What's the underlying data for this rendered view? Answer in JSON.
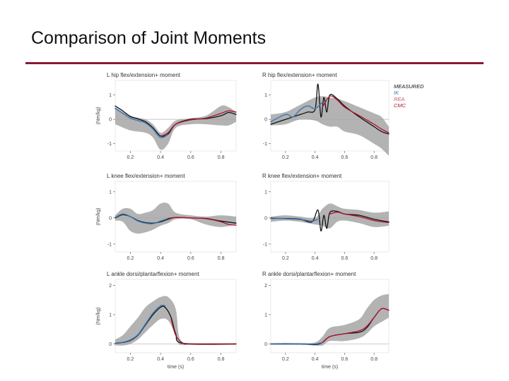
{
  "slide": {
    "title": "Comparison of Joint Moments",
    "accent_color": "#8b1a33"
  },
  "legend": [
    {
      "label": "MEASURED",
      "color": "#111111"
    },
    {
      "label": "IK",
      "color": "#3a78b8"
    },
    {
      "label": "REA",
      "color": "#c25a72"
    },
    {
      "label": "CMC",
      "color": "#b0122f"
    }
  ],
  "chart_data": [
    {
      "type": "line",
      "title": "L hip flex/extension+ moment",
      "ylabel": "(Nm/kg)",
      "xlabel": "",
      "xlim": [
        0.1,
        0.9
      ],
      "ylim": [
        -1.3,
        1.6
      ],
      "xticks": [
        "0.2",
        "0.4",
        "0.6",
        "0.8"
      ],
      "xtick_values": [
        0.2,
        0.4,
        0.6,
        0.8
      ],
      "yticks": [
        "1",
        "0",
        "-1"
      ],
      "ytick_values": [
        1,
        0,
        -1
      ],
      "band": {
        "x": [
          0.1,
          0.2,
          0.3,
          0.35,
          0.4,
          0.45,
          0.5,
          0.6,
          0.7,
          0.8,
          0.85,
          0.9
        ],
        "upper": [
          0.5,
          0.15,
          0.0,
          -0.2,
          -0.55,
          -0.35,
          -0.05,
          0.05,
          0.15,
          0.55,
          0.5,
          0.3
        ],
        "lower": [
          -0.2,
          -0.45,
          -0.55,
          -0.75,
          -1.25,
          -1.0,
          -0.35,
          -0.2,
          -0.2,
          -0.25,
          -0.25,
          -0.1
        ]
      },
      "series": [
        {
          "name": "MEASURED",
          "x": [
            0.1,
            0.15,
            0.2,
            0.25,
            0.3,
            0.35,
            0.4,
            0.45,
            0.5,
            0.6,
            0.7,
            0.8,
            0.85,
            0.9
          ],
          "y": [
            0.55,
            0.35,
            0.12,
            0.02,
            -0.1,
            -0.35,
            -0.68,
            -0.6,
            -0.2,
            0.0,
            0.03,
            0.15,
            0.28,
            0.2
          ]
        },
        {
          "name": "IK",
          "x": [
            0.1,
            0.15,
            0.2,
            0.25,
            0.3,
            0.35,
            0.4,
            0.45
          ],
          "y": [
            0.45,
            0.25,
            0.05,
            -0.05,
            -0.15,
            -0.4,
            -0.75,
            -0.62
          ]
        },
        {
          "name": "CMC",
          "x": [
            0.4,
            0.45,
            0.5,
            0.6,
            0.7,
            0.8,
            0.85,
            0.9
          ],
          "y": [
            -0.7,
            -0.55,
            -0.2,
            -0.02,
            0.05,
            0.25,
            0.35,
            0.3
          ]
        }
      ]
    },
    {
      "type": "line",
      "title": "R hip flex/extension+ moment",
      "ylabel": "",
      "xlabel": "",
      "xlim": [
        0.1,
        0.9
      ],
      "ylim": [
        -1.3,
        1.6
      ],
      "xticks": [
        "0.2",
        "0.4",
        "0.6",
        "0.8"
      ],
      "xtick_values": [
        0.2,
        0.4,
        0.6,
        0.8
      ],
      "yticks": [
        "1",
        "0",
        "-1"
      ],
      "ytick_values": [
        1,
        0,
        -1
      ],
      "band": {
        "x": [
          0.1,
          0.2,
          0.3,
          0.4,
          0.45,
          0.5,
          0.55,
          0.6,
          0.7,
          0.8,
          0.85,
          0.9
        ],
        "upper": [
          0.2,
          0.3,
          0.6,
          0.9,
          0.95,
          0.9,
          0.85,
          0.75,
          0.5,
          0.25,
          0.1,
          -0.3
        ],
        "lower": [
          -0.25,
          -0.2,
          0.0,
          -0.05,
          -0.2,
          -0.3,
          -0.3,
          -0.5,
          -0.65,
          -1.0,
          -1.2,
          -1.5
        ]
      },
      "series": [
        {
          "name": "MEASURED",
          "x": [
            0.1,
            0.2,
            0.3,
            0.35,
            0.4,
            0.42,
            0.44,
            0.46,
            0.48,
            0.5,
            0.55,
            0.6,
            0.7,
            0.8,
            0.85,
            0.9
          ],
          "y": [
            -0.2,
            0.0,
            0.2,
            0.3,
            0.4,
            1.45,
            0.1,
            0.9,
            0.3,
            1.0,
            0.85,
            0.55,
            0.1,
            -0.3,
            -0.5,
            -0.6
          ]
        },
        {
          "name": "IK",
          "x": [
            0.1,
            0.2,
            0.25,
            0.3,
            0.35,
            0.4,
            0.45
          ],
          "y": [
            -0.1,
            0.2,
            0.1,
            0.4,
            0.55,
            0.45,
            0.7
          ]
        },
        {
          "name": "CMC",
          "x": [
            0.45,
            0.5,
            0.55,
            0.6,
            0.7,
            0.8,
            0.85,
            0.9
          ],
          "y": [
            0.5,
            0.95,
            0.8,
            0.5,
            0.15,
            -0.2,
            -0.4,
            -0.55
          ]
        }
      ]
    },
    {
      "type": "line",
      "title": "L knee flex/extension+ moment",
      "ylabel": "(Nm/kg)",
      "xlabel": "",
      "xlim": [
        0.1,
        0.9
      ],
      "ylim": [
        -1.3,
        1.4
      ],
      "xticks": [
        "0.2",
        "0.4",
        "0.6",
        "0.8"
      ],
      "xtick_values": [
        0.2,
        0.4,
        0.6,
        0.8
      ],
      "yticks": [
        "1",
        "0",
        "-1"
      ],
      "ytick_values": [
        1,
        0,
        -1
      ],
      "band": {
        "x": [
          0.1,
          0.15,
          0.2,
          0.25,
          0.3,
          0.35,
          0.4,
          0.45,
          0.5,
          0.6,
          0.7,
          0.8,
          0.9
        ],
        "upper": [
          0.1,
          0.35,
          0.35,
          0.15,
          0.2,
          0.3,
          0.55,
          0.55,
          0.2,
          0.1,
          0.05,
          0.1,
          0.05
        ],
        "lower": [
          -0.1,
          -0.15,
          -0.5,
          -0.6,
          -0.55,
          -0.45,
          -0.3,
          -0.2,
          -0.05,
          -0.05,
          -0.25,
          -0.35,
          -0.25
        ]
      },
      "series": [
        {
          "name": "MEASURED",
          "x": [
            0.1,
            0.15,
            0.2,
            0.25,
            0.3,
            0.35,
            0.4,
            0.45,
            0.5,
            0.6,
            0.7,
            0.8,
            0.9
          ],
          "y": [
            0.0,
            0.12,
            0.05,
            -0.1,
            -0.18,
            -0.2,
            -0.15,
            -0.05,
            0.02,
            0.0,
            -0.02,
            -0.12,
            -0.2
          ]
        },
        {
          "name": "IK",
          "x": [
            0.1,
            0.15,
            0.2,
            0.25,
            0.3,
            0.35,
            0.4,
            0.45
          ],
          "y": [
            0.02,
            0.15,
            0.05,
            -0.12,
            -0.2,
            -0.22,
            -0.12,
            -0.02
          ]
        },
        {
          "name": "CMC",
          "x": [
            0.45,
            0.5,
            0.6,
            0.7,
            0.8,
            0.85,
            0.9
          ],
          "y": [
            -0.02,
            0.02,
            0.0,
            -0.03,
            -0.15,
            -0.25,
            -0.28
          ]
        }
      ]
    },
    {
      "type": "line",
      "title": "R knee flex/extension+ moment",
      "ylabel": "",
      "xlabel": "",
      "xlim": [
        0.1,
        0.9
      ],
      "ylim": [
        -1.3,
        1.4
      ],
      "xticks": [
        "0.2",
        "0.4",
        "0.6",
        "0.8"
      ],
      "xtick_values": [
        0.2,
        0.4,
        0.6,
        0.8
      ],
      "yticks": [
        "1",
        "0",
        "-1"
      ],
      "ytick_values": [
        1,
        0,
        -1
      ],
      "band": {
        "x": [
          0.1,
          0.2,
          0.3,
          0.4,
          0.45,
          0.5,
          0.55,
          0.6,
          0.7,
          0.8,
          0.9
        ],
        "upper": [
          0.05,
          0.1,
          0.05,
          0.0,
          0.35,
          0.55,
          0.45,
          0.35,
          0.3,
          0.2,
          0.25
        ],
        "lower": [
          -0.15,
          -0.1,
          -0.15,
          -0.25,
          -0.3,
          -0.4,
          -0.15,
          -0.1,
          -0.2,
          -0.35,
          -0.3
        ]
      },
      "series": [
        {
          "name": "MEASURED",
          "x": [
            0.1,
            0.2,
            0.3,
            0.38,
            0.42,
            0.44,
            0.46,
            0.48,
            0.5,
            0.55,
            0.6,
            0.7,
            0.8,
            0.9
          ],
          "y": [
            -0.02,
            -0.02,
            -0.05,
            -0.15,
            0.3,
            -0.5,
            0.1,
            -0.4,
            0.2,
            0.25,
            0.15,
            0.1,
            -0.05,
            -0.15
          ]
        },
        {
          "name": "IK",
          "x": [
            0.1,
            0.2,
            0.3,
            0.38,
            0.42
          ],
          "y": [
            0.0,
            -0.03,
            -0.06,
            -0.12,
            -0.05
          ]
        },
        {
          "name": "CMC",
          "x": [
            0.5,
            0.55,
            0.6,
            0.7,
            0.8,
            0.9
          ],
          "y": [
            0.15,
            0.22,
            0.15,
            0.05,
            -0.1,
            -0.18
          ]
        }
      ]
    },
    {
      "type": "line",
      "title": "L ankle dorsi/plantarflexion+ moment",
      "ylabel": "(Nm/kg)",
      "xlabel": "time (s)",
      "xlim": [
        0.1,
        0.9
      ],
      "ylim": [
        -0.3,
        2.2
      ],
      "xticks": [
        "0.2",
        "0.4",
        "0.6",
        "0.8"
      ],
      "xtick_values": [
        0.2,
        0.4,
        0.6,
        0.8
      ],
      "yticks": [
        "2",
        "1",
        "0"
      ],
      "ytick_values": [
        2,
        1,
        0
      ],
      "band": {
        "x": [
          0.1,
          0.15,
          0.2,
          0.25,
          0.3,
          0.35,
          0.4,
          0.45,
          0.5,
          0.52,
          0.55,
          0.6,
          0.9
        ],
        "upper": [
          0.15,
          0.3,
          0.6,
          0.9,
          1.25,
          1.45,
          1.6,
          1.6,
          1.2,
          0.3,
          0.05,
          0.03,
          0.03
        ],
        "lower": [
          -0.05,
          -0.05,
          0.0,
          0.15,
          0.4,
          0.65,
          0.85,
          0.8,
          0.3,
          0.0,
          -0.03,
          -0.03,
          -0.03
        ]
      },
      "series": [
        {
          "name": "MEASURED",
          "x": [
            0.1,
            0.15,
            0.2,
            0.25,
            0.3,
            0.35,
            0.4,
            0.43,
            0.47,
            0.5,
            0.55,
            0.9
          ],
          "y": [
            0.02,
            0.05,
            0.12,
            0.3,
            0.65,
            1.0,
            1.25,
            1.25,
            0.9,
            0.35,
            0.02,
            0.0
          ]
        },
        {
          "name": "IK",
          "x": [
            0.1,
            0.15,
            0.2,
            0.25,
            0.3,
            0.35,
            0.4,
            0.43
          ],
          "y": [
            0.03,
            0.06,
            0.14,
            0.32,
            0.68,
            1.05,
            1.3,
            1.3
          ]
        },
        {
          "name": "CMC",
          "x": [
            0.47,
            0.5,
            0.55,
            0.6,
            0.9
          ],
          "y": [
            0.85,
            0.3,
            0.02,
            0.0,
            0.0
          ]
        }
      ]
    },
    {
      "type": "line",
      "title": "R ankle dorsi/plantarflexion+ moment",
      "ylabel": "",
      "xlabel": "time (s)",
      "xlim": [
        0.1,
        0.9
      ],
      "ylim": [
        -0.3,
        2.2
      ],
      "xticks": [
        "0.2",
        "0.4",
        "0.6",
        "0.8"
      ],
      "xtick_values": [
        0.2,
        0.4,
        0.6,
        0.8
      ],
      "yticks": [
        "2",
        "1",
        "0"
      ],
      "ytick_values": [
        2,
        1,
        0
      ],
      "band": {
        "x": [
          0.1,
          0.3,
          0.4,
          0.45,
          0.5,
          0.6,
          0.7,
          0.75,
          0.8,
          0.85,
          0.9
        ],
        "upper": [
          0.03,
          0.03,
          0.05,
          0.25,
          0.55,
          0.65,
          0.85,
          1.2,
          1.5,
          1.65,
          1.7
        ],
        "lower": [
          -0.03,
          -0.03,
          -0.05,
          -0.05,
          0.1,
          0.1,
          0.2,
          0.35,
          0.6,
          0.75,
          0.9
        ]
      },
      "series": [
        {
          "name": "MEASURED",
          "x": [
            0.1,
            0.3,
            0.4,
            0.45,
            0.5,
            0.6,
            0.7,
            0.75,
            0.8,
            0.85,
            0.9
          ],
          "y": [
            0.0,
            0.0,
            -0.02,
            0.05,
            0.25,
            0.35,
            0.4,
            0.55,
            0.9,
            1.2,
            1.15
          ]
        },
        {
          "name": "IK",
          "x": [
            0.1,
            0.2,
            0.3,
            0.4,
            0.45
          ],
          "y": [
            0.0,
            0.01,
            0.0,
            0.0,
            0.05
          ]
        },
        {
          "name": "CMC",
          "x": [
            0.45,
            0.5,
            0.6,
            0.7,
            0.75,
            0.8,
            0.85,
            0.9
          ],
          "y": [
            0.05,
            0.25,
            0.35,
            0.45,
            0.6,
            0.9,
            1.2,
            1.15
          ]
        }
      ]
    }
  ]
}
